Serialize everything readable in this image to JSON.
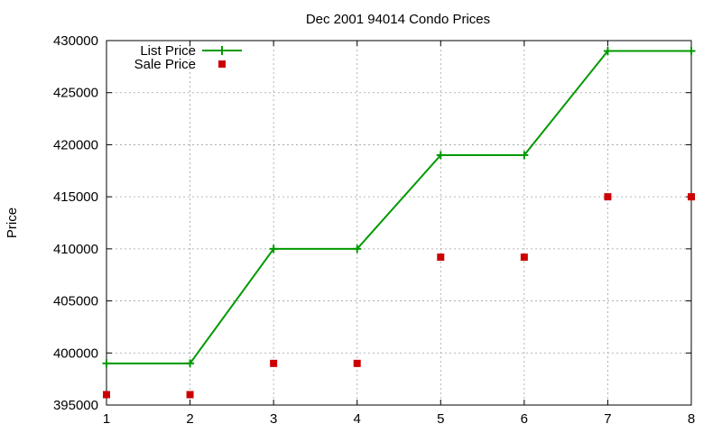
{
  "chart_data": {
    "type": "line",
    "title": "Dec 2001 94014 Condo Prices",
    "xlabel": "",
    "ylabel": "Price",
    "x": [
      1,
      2,
      3,
      4,
      5,
      6,
      7,
      8
    ],
    "xlim": [
      1,
      8
    ],
    "ylim": [
      395000,
      430000
    ],
    "xticks": [
      "1",
      "2",
      "3",
      "4",
      "5",
      "6",
      "7",
      "8"
    ],
    "yticks": [
      "395000",
      "400000",
      "405000",
      "410000",
      "415000",
      "420000",
      "425000",
      "430000"
    ],
    "grid": true,
    "legend_position": "top-left",
    "series": [
      {
        "name": "List Price",
        "style": "linespoints",
        "marker": "plus",
        "color": "#009900",
        "values": [
          399000,
          399000,
          410000,
          410000,
          419000,
          419000,
          429000,
          429000
        ]
      },
      {
        "name": "Sale Price",
        "style": "points",
        "marker": "square",
        "color": "#cc0000",
        "values": [
          396000,
          396000,
          399000,
          399000,
          409200,
          409200,
          415000,
          415000
        ]
      }
    ]
  }
}
